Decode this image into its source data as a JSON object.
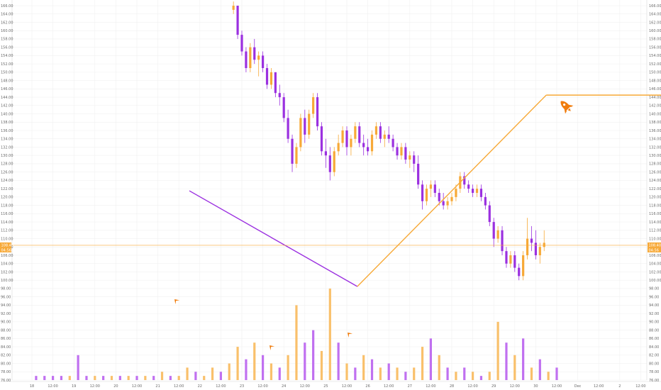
{
  "chart_data": {
    "type": "candlestick",
    "colors": {
      "up": "#f7a937",
      "down": "#9b30e0",
      "vol_up": "#f9c06b",
      "vol_down": "#c070f0",
      "trend_down": "#9b30e0",
      "trend_up": "#f7a937",
      "price_line": "#f7a937",
      "grid": "#f0f0f0",
      "icon": "#f07c0c"
    },
    "price_axis": {
      "min": 76,
      "max": 166,
      "step": 2,
      "labels_left": [
        "166.00",
        "164.00",
        "162.00",
        "160.00",
        "158.00",
        "156.00",
        "154.00",
        "152.00",
        "150.00",
        "148.00",
        "146.00",
        "144.00",
        "142.00",
        "140.00",
        "138.00",
        "136.00",
        "134.00",
        "132.00",
        "130.00",
        "128.00",
        "126.00",
        "124.00",
        "122.00",
        "120.00",
        "118.00",
        "116.00",
        "114.00",
        "112.00",
        "110.00",
        "108.00",
        "106.00",
        "104.00",
        "102.00",
        "100.00",
        "98.00",
        "96.00",
        "94.00",
        "92.00",
        "90.00",
        "88.00",
        "86.00",
        "84.00",
        "82.00",
        "80.00",
        "78.00",
        "76.00"
      ],
      "labels_right": [
        "166.00",
        "164.00",
        "162.00",
        "160.00",
        "158.00",
        "156.00",
        "154.00",
        "152.00",
        "150.00",
        "148.00",
        "146.00",
        "144.00",
        "142.00",
        "140.00",
        "138.00",
        "136.00",
        "134.00",
        "132.00",
        "130.00",
        "128.00",
        "126.00",
        "124.00",
        "122.00",
        "120.00",
        "118.00",
        "116.00",
        "114.00",
        "112.00",
        "110.00",
        "108.00",
        "106.00",
        "104.00",
        "102.00",
        "100.00",
        "98.00",
        "96.00",
        "94.00",
        "92.00",
        "90.00",
        "88.00",
        "86.00",
        "84.00",
        "82.00",
        "80.00",
        "78.00",
        "76.00"
      ]
    },
    "time_axis": {
      "labels": [
        "18",
        "12:00",
        "19",
        "12:00",
        "20",
        "12:00",
        "21",
        "12:00",
        "22",
        "12:00",
        "23",
        "12:00",
        "24",
        "12:00",
        "25",
        "12:00",
        "26",
        "12:00",
        "27",
        "12:00",
        "28",
        "12:00",
        "29",
        "12:00",
        "30",
        "12:00",
        "Dec",
        "12:00",
        "2",
        "12:00"
      ]
    },
    "price_tags": {
      "current": "108.40",
      "secondary": "04:56"
    },
    "current_price": 108.4,
    "trendlines": [
      {
        "name": "down-trend",
        "from": [
          7.5,
          121.5
        ],
        "to": [
          15.5,
          98.5
        ]
      },
      {
        "name": "up-projection",
        "from": [
          15.5,
          98.5
        ],
        "to": [
          24.5,
          144.5
        ]
      },
      {
        "name": "target-level",
        "from": [
          24.5,
          144.5
        ],
        "to": [
          30.0,
          144.5
        ]
      }
    ],
    "candles": [
      [
        4.8,
        165,
        167,
        164,
        166
      ],
      [
        4.9,
        166,
        166,
        158,
        159
      ],
      [
        5.0,
        159,
        160,
        154,
        155
      ],
      [
        5.1,
        155,
        156,
        150,
        151
      ],
      [
        5.2,
        151,
        157,
        150,
        156
      ],
      [
        5.3,
        156,
        158,
        152,
        153
      ],
      [
        5.4,
        153,
        155,
        149,
        154
      ],
      [
        5.5,
        154,
        155,
        150,
        151
      ],
      [
        5.6,
        151,
        152,
        146,
        147
      ],
      [
        5.7,
        147,
        151,
        146,
        150
      ],
      [
        5.8,
        150,
        150,
        144,
        145
      ],
      [
        5.9,
        145,
        147,
        142,
        144
      ],
      [
        6.0,
        144,
        145,
        138,
        139
      ],
      [
        6.1,
        139,
        141,
        133,
        134
      ],
      [
        6.2,
        134,
        135,
        126,
        128
      ],
      [
        6.3,
        128,
        133,
        127,
        132
      ],
      [
        6.4,
        132,
        140,
        131,
        139
      ],
      [
        6.5,
        139,
        141,
        133,
        135
      ],
      [
        6.6,
        135,
        141,
        134,
        140
      ],
      [
        6.7,
        140,
        145,
        139,
        144
      ],
      [
        6.8,
        144,
        145,
        136,
        137
      ],
      [
        6.9,
        137,
        138,
        130,
        131
      ],
      [
        7.0,
        131,
        134,
        127,
        130
      ],
      [
        7.1,
        130,
        132,
        124,
        126
      ],
      [
        7.2,
        126,
        132,
        125,
        131
      ],
      [
        7.3,
        131,
        135,
        130,
        133
      ],
      [
        7.4,
        133,
        137,
        132,
        136
      ],
      [
        7.5,
        136,
        137,
        130,
        132
      ],
      [
        7.6,
        132,
        135,
        130,
        134
      ],
      [
        7.7,
        134,
        138,
        133,
        137
      ],
      [
        7.8,
        137,
        138,
        132,
        133
      ],
      [
        7.9,
        133,
        135,
        130,
        132
      ],
      [
        8.0,
        132,
        134,
        130,
        131
      ],
      [
        8.1,
        131,
        136,
        130,
        135
      ],
      [
        8.2,
        135,
        138,
        134,
        137
      ],
      [
        8.3,
        137,
        138,
        133,
        134
      ],
      [
        8.4,
        134,
        136,
        132,
        135
      ],
      [
        8.5,
        135,
        137,
        133,
        134
      ],
      [
        8.6,
        134,
        135,
        131,
        132
      ],
      [
        8.7,
        132,
        133,
        129,
        130
      ],
      [
        8.8,
        130,
        133,
        129,
        132
      ],
      [
        8.9,
        132,
        133,
        128,
        129
      ],
      [
        9.0,
        129,
        131,
        127,
        130
      ],
      [
        9.1,
        130,
        131,
        126,
        128
      ],
      [
        9.2,
        128,
        130,
        122,
        123
      ],
      [
        9.3,
        123,
        124,
        117,
        119
      ],
      [
        9.4,
        119,
        123,
        118,
        122
      ],
      [
        9.5,
        122,
        124,
        120,
        123
      ],
      [
        9.6,
        123,
        124,
        120,
        121
      ],
      [
        9.7,
        121,
        122,
        118,
        119
      ],
      [
        9.8,
        119,
        121,
        117,
        118
      ],
      [
        9.9,
        118,
        120,
        117,
        119
      ],
      [
        10.0,
        119,
        121,
        118,
        120
      ],
      [
        10.1,
        120,
        123,
        119,
        122
      ],
      [
        10.2,
        122,
        126,
        121,
        125
      ],
      [
        10.3,
        125,
        126,
        122,
        123
      ],
      [
        10.4,
        123,
        124,
        121,
        122
      ],
      [
        10.5,
        122,
        123,
        120,
        121
      ],
      [
        10.6,
        121,
        123,
        120,
        122
      ],
      [
        10.7,
        122,
        123,
        119,
        120
      ],
      [
        10.8,
        120,
        121,
        117,
        118
      ],
      [
        10.9,
        118,
        119,
        113,
        114
      ],
      [
        11.0,
        114,
        115,
        108,
        110
      ],
      [
        11.1,
        110,
        113,
        109,
        112
      ],
      [
        11.2,
        112,
        113,
        106,
        107
      ],
      [
        11.3,
        107,
        108,
        103,
        104
      ],
      [
        11.4,
        104,
        107,
        103,
        106
      ],
      [
        11.5,
        106,
        107,
        102,
        103
      ],
      [
        11.6,
        103,
        104,
        100,
        101
      ],
      [
        11.7,
        101,
        107,
        100,
        106
      ],
      [
        11.8,
        106,
        115,
        105,
        110
      ],
      [
        11.9,
        110,
        113,
        107,
        109
      ],
      [
        12.0,
        109,
        112,
        105,
        106
      ],
      [
        12.1,
        106,
        109,
        104,
        108
      ],
      [
        12.2,
        108,
        112,
        107,
        109
      ]
    ],
    "volume_axis": {
      "min": 76
    },
    "volumes": [
      [
        0.1,
        1,
        0
      ],
      [
        0.3,
        1,
        0
      ],
      [
        0.5,
        1,
        0
      ],
      [
        0.7,
        1,
        0
      ],
      [
        0.9,
        1,
        1
      ],
      [
        1.1,
        6,
        0
      ],
      [
        1.3,
        1,
        0
      ],
      [
        1.5,
        1,
        1
      ],
      [
        1.7,
        1,
        0
      ],
      [
        1.9,
        1,
        1
      ],
      [
        2.1,
        1,
        0
      ],
      [
        2.3,
        1,
        1
      ],
      [
        2.5,
        1,
        0
      ],
      [
        2.7,
        1,
        1
      ],
      [
        2.9,
        1,
        0
      ],
      [
        3.1,
        2,
        1
      ],
      [
        3.3,
        1,
        0
      ],
      [
        3.5,
        1,
        1
      ],
      [
        3.7,
        3,
        1
      ],
      [
        3.9,
        2,
        0
      ],
      [
        4.1,
        1,
        1
      ],
      [
        4.3,
        3,
        1
      ],
      [
        4.5,
        2,
        0
      ],
      [
        4.7,
        4,
        1
      ],
      [
        4.9,
        8,
        1
      ],
      [
        5.1,
        5,
        0
      ],
      [
        5.3,
        9,
        1
      ],
      [
        5.5,
        6,
        0
      ],
      [
        5.7,
        4,
        1
      ],
      [
        5.9,
        3,
        0
      ],
      [
        6.1,
        6,
        1
      ],
      [
        6.3,
        18,
        1
      ],
      [
        6.5,
        9,
        0
      ],
      [
        6.7,
        12,
        0
      ],
      [
        6.9,
        7,
        1
      ],
      [
        7.1,
        22,
        1
      ],
      [
        7.3,
        9,
        0
      ],
      [
        7.5,
        4,
        1
      ],
      [
        7.7,
        3,
        0
      ],
      [
        7.9,
        6,
        1
      ],
      [
        8.1,
        5,
        0
      ],
      [
        8.3,
        3,
        1
      ],
      [
        8.5,
        4,
        0
      ],
      [
        8.7,
        3,
        1
      ],
      [
        8.9,
        2,
        0
      ],
      [
        9.1,
        3,
        1
      ],
      [
        9.3,
        8,
        1
      ],
      [
        9.5,
        10,
        0
      ],
      [
        9.7,
        6,
        1
      ],
      [
        9.9,
        3,
        0
      ],
      [
        10.1,
        2,
        1
      ],
      [
        10.3,
        3,
        0
      ],
      [
        10.5,
        2,
        1
      ],
      [
        10.7,
        1,
        0
      ],
      [
        10.9,
        2,
        1
      ],
      [
        11.1,
        14,
        1
      ],
      [
        11.3,
        9,
        0
      ],
      [
        11.5,
        6,
        1
      ],
      [
        11.7,
        10,
        0
      ],
      [
        11.9,
        3,
        1
      ],
      [
        12.1,
        5,
        0
      ],
      [
        12.3,
        2,
        1
      ],
      [
        12.5,
        3,
        0
      ]
    ]
  }
}
